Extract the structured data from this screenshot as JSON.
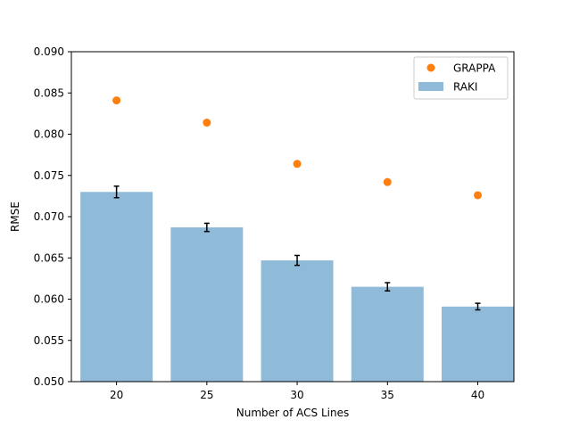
{
  "chart_data": {
    "type": "bar",
    "title": "",
    "xlabel": "Number of ACS Lines",
    "ylabel": "RMSE",
    "ylim": [
      0.05,
      0.09
    ],
    "categories": [
      20,
      25,
      30,
      35,
      40
    ],
    "yticks": [
      0.05,
      0.055,
      0.06,
      0.065,
      0.07,
      0.075,
      0.08,
      0.085,
      0.09
    ],
    "ytick_labels": [
      "0.050",
      "0.055",
      "0.060",
      "0.065",
      "0.070",
      "0.075",
      "0.080",
      "0.085",
      "0.090"
    ],
    "xtick_labels": [
      "20",
      "25",
      "30",
      "35",
      "40"
    ],
    "series": [
      {
        "name": "RAKI",
        "kind": "bar",
        "color": "#8fbbd9",
        "values": [
          0.073,
          0.0687,
          0.0647,
          0.0615,
          0.0591
        ],
        "errors": [
          0.0007,
          0.0005,
          0.0006,
          0.0005,
          0.0004
        ]
      },
      {
        "name": "GRAPPA",
        "kind": "scatter",
        "color": "#ff7f0e",
        "values": [
          0.0841,
          0.0814,
          0.0764,
          0.0742,
          0.0726
        ]
      }
    ],
    "legend": {
      "position": "top-right",
      "entries": [
        "GRAPPA",
        "RAKI"
      ]
    }
  }
}
